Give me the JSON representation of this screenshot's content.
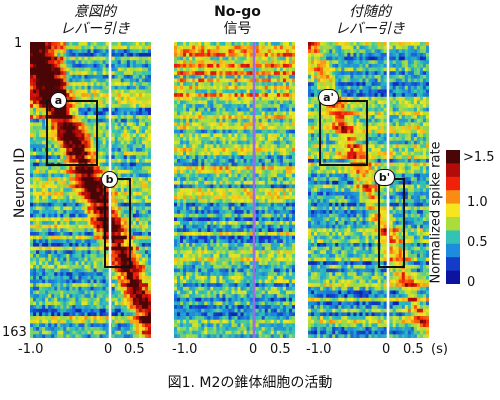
{
  "panels": [
    {
      "id": "intentional",
      "title_line1": "意図的",
      "title_line2": "レバー引き",
      "bold": false,
      "line_color": "#ffffff"
    },
    {
      "id": "nogo",
      "title_line1": "No-go",
      "title_line2": "信号",
      "bold": true,
      "line_color": "#9a6ce8"
    },
    {
      "id": "incidental",
      "title_line1": "付随的",
      "title_line2": "レバー引き",
      "bold": false,
      "line_color": "#ffffff"
    }
  ],
  "y_axis": {
    "label": "Neuron ID",
    "top_tick": "1",
    "bottom_tick": "163"
  },
  "x_ticks": {
    "neg": "-1.0",
    "zero": "0",
    "pos": "0.5",
    "unit": "(s)"
  },
  "badges": {
    "a": "a",
    "b": "b",
    "a_prime": "a'",
    "b_prime": "b'"
  },
  "colorbar": {
    "label": "Normalized  spike rate",
    "ticks": [
      ">1.5",
      "1.0",
      "0.5",
      "0"
    ],
    "colors": [
      "#4a0606",
      "#b30a0a",
      "#f0200a",
      "#fa8c14",
      "#f5e61e",
      "#aadc3c",
      "#32c3b4",
      "#1e8cdc",
      "#143cc8",
      "#0a14a0"
    ]
  },
  "caption": "図1. M2の錐体細胞の活動"
}
